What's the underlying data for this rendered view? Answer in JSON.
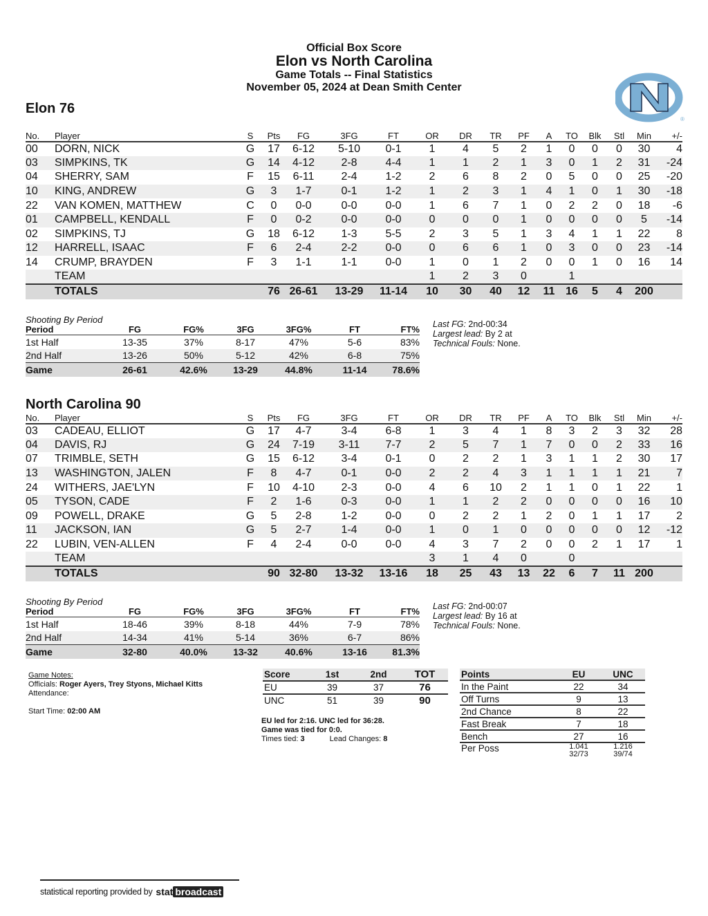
{
  "header": {
    "line1": "Official Box Score",
    "line2": "Elon vs North Carolina",
    "line3": "Game Totals -- Final Statistics",
    "line4": "November 05, 2024 at Dean Smith Center"
  },
  "logo": {
    "text": "NC",
    "color": "#7bafd4"
  },
  "columns": [
    "No.",
    "Player",
    "S",
    "Pts",
    "FG",
    "3FG",
    "FT",
    "OR",
    "DR",
    "TR",
    "PF",
    "A",
    "TO",
    "Blk",
    "Stl",
    "Min",
    "+/-"
  ],
  "away": {
    "title": "Elon 76",
    "players": [
      [
        "00",
        "DORN, NICK",
        "G",
        "17",
        "6-12",
        "5-10",
        "0-1",
        "1",
        "4",
        "5",
        "2",
        "1",
        "0",
        "0",
        "0",
        "30",
        "4"
      ],
      [
        "03",
        "SIMPKINS, TK",
        "G",
        "14",
        "4-12",
        "2-8",
        "4-4",
        "1",
        "1",
        "2",
        "1",
        "3",
        "0",
        "1",
        "2",
        "31",
        "-24"
      ],
      [
        "04",
        "SHERRY, SAM",
        "F",
        "15",
        "6-11",
        "2-4",
        "1-2",
        "2",
        "6",
        "8",
        "2",
        "0",
        "5",
        "0",
        "0",
        "25",
        "-20"
      ],
      [
        "10",
        "KING, ANDREW",
        "G",
        "3",
        "1-7",
        "0-1",
        "1-2",
        "1",
        "2",
        "3",
        "1",
        "4",
        "1",
        "0",
        "1",
        "30",
        "-18"
      ],
      [
        "22",
        "VAN KOMEN, MATTHEW",
        "C",
        "0",
        "0-0",
        "0-0",
        "0-0",
        "1",
        "6",
        "7",
        "1",
        "0",
        "2",
        "2",
        "0",
        "18",
        "-6"
      ],
      [
        "01",
        "CAMPBELL, KENDALL",
        "F",
        "0",
        "0-2",
        "0-0",
        "0-0",
        "0",
        "0",
        "0",
        "1",
        "0",
        "0",
        "0",
        "0",
        "5",
        "-14"
      ],
      [
        "02",
        "SIMPKINS, TJ",
        "G",
        "18",
        "6-12",
        "1-3",
        "5-5",
        "2",
        "3",
        "5",
        "1",
        "3",
        "4",
        "1",
        "1",
        "22",
        "8"
      ],
      [
        "12",
        "HARRELL, ISAAC",
        "F",
        "6",
        "2-4",
        "2-2",
        "0-0",
        "0",
        "6",
        "6",
        "1",
        "0",
        "3",
        "0",
        "0",
        "23",
        "-14"
      ],
      [
        "14",
        "CRUMP, BRAYDEN",
        "F",
        "3",
        "1-1",
        "1-1",
        "0-0",
        "1",
        "0",
        "1",
        "2",
        "0",
        "0",
        "1",
        "0",
        "16",
        "14"
      ],
      [
        "",
        "TEAM",
        "",
        "",
        "",
        "",
        "",
        "1",
        "2",
        "3",
        "0",
        "",
        "1",
        "",
        "",
        "",
        ""
      ]
    ],
    "totals": [
      "",
      "TOTALS",
      "",
      "76",
      "26-61",
      "13-29",
      "11-14",
      "10",
      "30",
      "40",
      "12",
      "11",
      "16",
      "5",
      "4",
      "200",
      ""
    ],
    "shooting": {
      "caption": "Shooting By Period",
      "headers": [
        "Period",
        "FG",
        "FG%",
        "3FG",
        "3FG%",
        "FT",
        "FT%"
      ],
      "rows": [
        [
          "1st Half",
          "13-35",
          "37%",
          "8-17",
          "47%",
          "5-6",
          "83%"
        ],
        [
          "2nd Half",
          "13-26",
          "50%",
          "5-12",
          "42%",
          "6-8",
          "75%"
        ]
      ],
      "game": [
        "Game",
        "26-61",
        "42.6%",
        "13-29",
        "44.8%",
        "11-14",
        "78.6%"
      ]
    },
    "notes": {
      "last_fg_label": "Last FG:",
      "last_fg": "2nd-00:34",
      "lead_label": "Largest lead:",
      "lead": "By 2 at",
      "tech_label": "Technical Fouls:",
      "tech": "None."
    }
  },
  "home": {
    "title": "North Carolina 90",
    "players": [
      [
        "03",
        "CADEAU, ELLIOT",
        "G",
        "17",
        "4-7",
        "3-4",
        "6-8",
        "1",
        "3",
        "4",
        "1",
        "8",
        "3",
        "2",
        "3",
        "32",
        "28"
      ],
      [
        "04",
        "DAVIS, RJ",
        "G",
        "24",
        "7-19",
        "3-11",
        "7-7",
        "2",
        "5",
        "7",
        "1",
        "7",
        "0",
        "0",
        "2",
        "33",
        "16"
      ],
      [
        "07",
        "TRIMBLE, SETH",
        "G",
        "15",
        "6-12",
        "3-4",
        "0-1",
        "0",
        "2",
        "2",
        "1",
        "3",
        "1",
        "1",
        "2",
        "30",
        "17"
      ],
      [
        "13",
        "WASHINGTON, JALEN",
        "F",
        "8",
        "4-7",
        "0-1",
        "0-0",
        "2",
        "2",
        "4",
        "3",
        "1",
        "1",
        "1",
        "1",
        "21",
        "7"
      ],
      [
        "24",
        "WITHERS, JAE'LYN",
        "F",
        "10",
        "4-10",
        "2-3",
        "0-0",
        "4",
        "6",
        "10",
        "2",
        "1",
        "1",
        "0",
        "1",
        "22",
        "1"
      ],
      [
        "05",
        "TYSON, CADE",
        "F",
        "2",
        "1-6",
        "0-3",
        "0-0",
        "1",
        "1",
        "2",
        "2",
        "0",
        "0",
        "0",
        "0",
        "16",
        "10"
      ],
      [
        "09",
        "POWELL, DRAKE",
        "G",
        "5",
        "2-8",
        "1-2",
        "0-0",
        "0",
        "2",
        "2",
        "1",
        "2",
        "0",
        "1",
        "1",
        "17",
        "2"
      ],
      [
        "11",
        "JACKSON, IAN",
        "G",
        "5",
        "2-7",
        "1-4",
        "0-0",
        "1",
        "0",
        "1",
        "0",
        "0",
        "0",
        "0",
        "0",
        "12",
        "-12"
      ],
      [
        "22",
        "LUBIN, VEN-ALLEN",
        "F",
        "4",
        "2-4",
        "0-0",
        "0-0",
        "4",
        "3",
        "7",
        "2",
        "0",
        "0",
        "2",
        "1",
        "17",
        "1"
      ],
      [
        "",
        "TEAM",
        "",
        "",
        "",
        "",
        "",
        "3",
        "1",
        "4",
        "0",
        "",
        "0",
        "",
        "",
        "",
        ""
      ]
    ],
    "totals": [
      "",
      "TOTALS",
      "",
      "90",
      "32-80",
      "13-32",
      "13-16",
      "18",
      "25",
      "43",
      "13",
      "22",
      "6",
      "7",
      "11",
      "200",
      ""
    ],
    "shooting": {
      "caption": "Shooting By Period",
      "headers": [
        "Period",
        "FG",
        "FG%",
        "3FG",
        "3FG%",
        "FT",
        "FT%"
      ],
      "rows": [
        [
          "1st Half",
          "18-46",
          "39%",
          "8-18",
          "44%",
          "7-9",
          "78%"
        ],
        [
          "2nd Half",
          "14-34",
          "41%",
          "5-14",
          "36%",
          "6-7",
          "86%"
        ]
      ],
      "game": [
        "Game",
        "32-80",
        "40.0%",
        "13-32",
        "40.6%",
        "13-16",
        "81.3%"
      ]
    },
    "notes": {
      "last_fg_label": "Last FG:",
      "last_fg": "2nd-00:07",
      "lead_label": "Largest lead:",
      "lead": "By 16 at",
      "tech_label": "Technical Fouls:",
      "tech": "None."
    }
  },
  "game_notes": {
    "title": "Game Notes:",
    "officials_label": "Officials:",
    "officials": "Roger Ayers, Trey Styons, Michael Kitts",
    "attendance_label": "Attendance:",
    "start_label": "Start Time:",
    "start": "02:00 AM"
  },
  "score": {
    "headers": [
      "Score",
      "1st",
      "2nd",
      "TOT"
    ],
    "rows": [
      [
        "EU",
        "39",
        "37",
        "76"
      ],
      [
        "UNC",
        "51",
        "39",
        "90"
      ]
    ],
    "lead_line1": "EU led for 2:16. UNC led for 36:28.",
    "lead_line2": "Game was tied for 0:0.",
    "tied_label": "Times tied:",
    "tied": "3",
    "changes_label": "Lead Changes:",
    "changes": "8"
  },
  "points": {
    "headers": [
      "Points",
      "EU",
      "UNC"
    ],
    "rows": [
      [
        "In the Paint",
        "22",
        "34"
      ],
      [
        "Off Turns",
        "9",
        "13"
      ],
      [
        "2nd Chance",
        "8",
        "22"
      ],
      [
        "Fast Break",
        "7",
        "18"
      ],
      [
        "Bench",
        "27",
        "16"
      ]
    ],
    "per_poss": {
      "label": "Per Poss",
      "eu": "1.041",
      "eu_sub": "32/73",
      "unc": "1.216",
      "unc_sub": "39/74"
    }
  },
  "footer": {
    "text": "statistical reporting provided by",
    "brand1": "stat",
    "brand2": "broadcast"
  }
}
